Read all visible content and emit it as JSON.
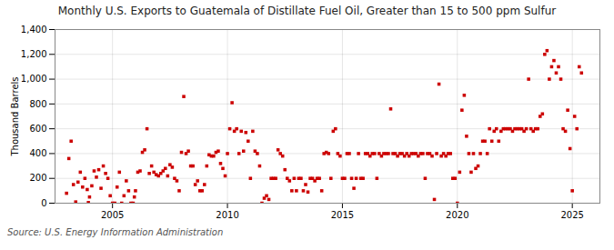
{
  "chart_data": {
    "type": "scatter",
    "title": "Monthly U.S. Exports to Guatemala of Distillate Fuel Oil, Greater than 15 to 500 ppm Sulfur",
    "ylabel": "Thousand Barrels",
    "source": "Source: U.S. Energy Information Administration",
    "color": "#cc0000",
    "marker": "square",
    "grid": true,
    "xlim": [
      2002.5,
      2026.2
    ],
    "xticks": [
      2005,
      2010,
      2015,
      2020,
      2025
    ],
    "ylim": [
      0,
      1400
    ],
    "yticks": [
      0,
      200,
      400,
      600,
      800,
      {
        "value": 1000,
        "label": "1,000"
      },
      {
        "value": 1200,
        "label": "1,200"
      },
      {
        "value": 1400,
        "label": "1,400"
      }
    ],
    "x": [
      2003.0,
      2003.1,
      2003.2,
      2003.3,
      2003.4,
      2003.5,
      2003.6,
      2003.7,
      2003.8,
      2003.9,
      2003.95,
      2004.0,
      2004.1,
      2004.2,
      2004.3,
      2004.4,
      2004.5,
      2004.6,
      2004.7,
      2004.8,
      2004.9,
      2005.0,
      2005.1,
      2005.2,
      2005.3,
      2005.4,
      2005.5,
      2005.6,
      2005.7,
      2005.8,
      2005.9,
      2005.95,
      2006.0,
      2006.1,
      2006.2,
      2006.3,
      2006.4,
      2006.5,
      2006.6,
      2006.7,
      2006.8,
      2006.9,
      2007.0,
      2007.1,
      2007.2,
      2007.3,
      2007.4,
      2007.5,
      2007.6,
      2007.7,
      2007.8,
      2007.9,
      2008.0,
      2008.1,
      2008.2,
      2008.3,
      2008.4,
      2008.5,
      2008.6,
      2008.7,
      2008.8,
      2008.9,
      2009.0,
      2009.1,
      2009.2,
      2009.3,
      2009.4,
      2009.5,
      2009.6,
      2009.7,
      2009.8,
      2009.9,
      2010.0,
      2010.1,
      2010.2,
      2010.3,
      2010.4,
      2010.5,
      2010.6,
      2010.7,
      2010.8,
      2010.9,
      2011.0,
      2011.1,
      2011.2,
      2011.3,
      2011.4,
      2011.5,
      2011.6,
      2011.7,
      2011.8,
      2011.9,
      2012.0,
      2012.1,
      2012.2,
      2012.3,
      2012.4,
      2012.5,
      2012.6,
      2012.7,
      2012.8,
      2012.9,
      2013.0,
      2013.1,
      2013.2,
      2013.3,
      2013.4,
      2013.5,
      2013.6,
      2013.7,
      2013.8,
      2013.9,
      2014.0,
      2014.1,
      2014.2,
      2014.3,
      2014.4,
      2014.5,
      2014.6,
      2014.7,
      2014.8,
      2014.9,
      2015.0,
      2015.1,
      2015.2,
      2015.3,
      2015.4,
      2015.5,
      2015.6,
      2015.7,
      2015.8,
      2015.9,
      2016.0,
      2016.1,
      2016.2,
      2016.3,
      2016.4,
      2016.5,
      2016.6,
      2016.7,
      2016.8,
      2016.9,
      2017.0,
      2017.1,
      2017.2,
      2017.3,
      2017.4,
      2017.5,
      2017.6,
      2017.7,
      2017.8,
      2017.9,
      2018.0,
      2018.1,
      2018.2,
      2018.3,
      2018.4,
      2018.5,
      2018.6,
      2018.7,
      2018.8,
      2018.9,
      2019.0,
      2019.1,
      2019.2,
      2019.3,
      2019.4,
      2019.5,
      2019.6,
      2019.7,
      2019.8,
      2019.9,
      2020.0,
      2020.1,
      2020.2,
      2020.3,
      2020.4,
      2020.5,
      2020.6,
      2020.7,
      2020.8,
      2020.9,
      2021.0,
      2021.1,
      2021.2,
      2021.3,
      2021.4,
      2021.5,
      2021.6,
      2021.7,
      2021.8,
      2021.9,
      2022.0,
      2022.1,
      2022.2,
      2022.3,
      2022.4,
      2022.5,
      2022.6,
      2022.7,
      2022.8,
      2022.9,
      2023.0,
      2023.1,
      2023.2,
      2023.3,
      2023.4,
      2023.5,
      2023.6,
      2023.7,
      2023.8,
      2023.9,
      2024.0,
      2024.1,
      2024.2,
      2024.3,
      2024.4,
      2024.5,
      2024.6,
      2024.7,
      2024.8,
      2024.9,
      2025.0,
      2025.1,
      2025.2,
      2025.3,
      2025.4
    ],
    "values": [
      80,
      360,
      500,
      150,
      10,
      170,
      250,
      130,
      200,
      110,
      5,
      50,
      140,
      260,
      210,
      270,
      120,
      300,
      240,
      200,
      60,
      0,
      0,
      130,
      250,
      0,
      60,
      180,
      100,
      0,
      0,
      50,
      100,
      250,
      260,
      410,
      430,
      600,
      240,
      300,
      250,
      230,
      220,
      240,
      260,
      280,
      220,
      310,
      290,
      200,
      180,
      100,
      410,
      860,
      400,
      420,
      300,
      300,
      150,
      180,
      100,
      100,
      150,
      300,
      390,
      380,
      380,
      410,
      420,
      320,
      280,
      220,
      400,
      600,
      810,
      580,
      600,
      400,
      580,
      420,
      570,
      500,
      200,
      580,
      420,
      400,
      300,
      0,
      40,
      60,
      30,
      200,
      200,
      200,
      430,
      400,
      380,
      270,
      200,
      180,
      100,
      200,
      100,
      200,
      200,
      100,
      150,
      90,
      200,
      200,
      180,
      200,
      200,
      100,
      400,
      410,
      400,
      200,
      580,
      600,
      400,
      380,
      200,
      200,
      400,
      400,
      200,
      120,
      200,
      400,
      200,
      200,
      400,
      400,
      380,
      400,
      400,
      200,
      400,
      380,
      400,
      400,
      400,
      760,
      400,
      400,
      380,
      400,
      400,
      380,
      400,
      380,
      400,
      400,
      400,
      380,
      400,
      400,
      200,
      400,
      400,
      380,
      30,
      400,
      960,
      380,
      400,
      380,
      400,
      400,
      200,
      200,
      0,
      250,
      750,
      870,
      540,
      400,
      250,
      400,
      280,
      300,
      400,
      500,
      500,
      400,
      600,
      500,
      580,
      600,
      500,
      580,
      600,
      600,
      600,
      600,
      580,
      600,
      600,
      600,
      600,
      580,
      600,
      1000,
      600,
      580,
      600,
      600,
      700,
      720,
      1200,
      1230,
      1000,
      1100,
      1150,
      1050,
      1100,
      1000,
      600,
      580,
      750,
      440,
      100,
      700,
      600,
      1100,
      1050
    ]
  }
}
